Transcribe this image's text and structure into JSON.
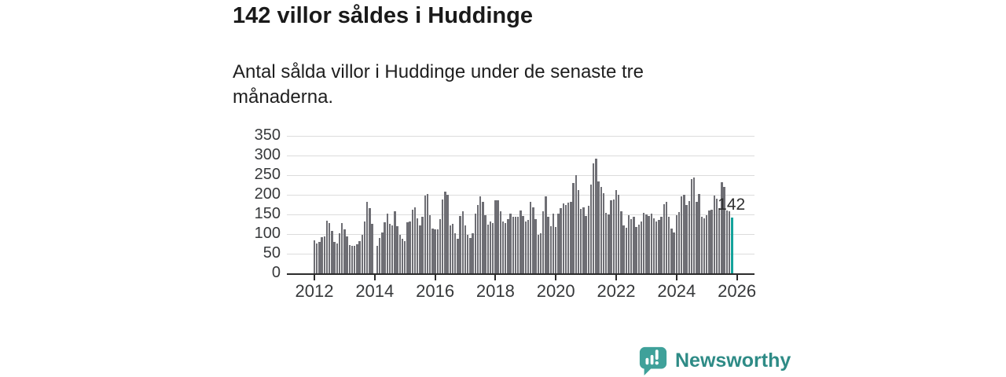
{
  "header": {
    "title": "142 villor såldes i Huddinge",
    "subtitle": "Antal sålda villor i Huddinge under de senaste tre månaderna."
  },
  "chart_data": {
    "type": "bar",
    "title": "Antal sålda villor i Huddinge under de senaste tre månaderna",
    "x_start": "2012-01",
    "frequency": "monthly (rolling 3-month totals)",
    "x_tick_labels": [
      "2012",
      "2014",
      "2016",
      "2018",
      "2020",
      "2022",
      "2024",
      "2026"
    ],
    "y_ticks": [
      0,
      50,
      100,
      150,
      200,
      250,
      300,
      350
    ],
    "ylim": [
      0,
      350
    ],
    "grid": "horizontal",
    "legend": "none",
    "bar_color": "#6e6e74",
    "values": [
      85,
      76,
      80,
      92,
      94,
      134,
      128,
      108,
      81,
      76,
      102,
      128,
      112,
      95,
      73,
      71,
      70,
      74,
      82,
      98,
      132,
      183,
      167,
      126,
      null,
      71,
      91,
      104,
      130,
      152,
      126,
      122,
      159,
      120,
      98,
      88,
      83,
      130,
      132,
      162,
      169,
      140,
      122,
      144,
      199,
      202,
      149,
      115,
      112,
      113,
      138,
      189,
      209,
      200,
      122,
      126,
      103,
      88,
      147,
      159,
      122,
      98,
      91,
      103,
      152,
      175,
      196,
      182,
      149,
      125,
      133,
      128,
      186,
      187,
      159,
      132,
      128,
      138,
      153,
      145,
      144,
      144,
      160,
      147,
      132,
      137,
      182,
      169,
      138,
      99,
      103,
      159,
      196,
      144,
      120,
      152,
      118,
      153,
      167,
      179,
      175,
      180,
      182,
      231,
      251,
      212,
      165,
      169,
      147,
      173,
      227,
      280,
      293,
      234,
      220,
      204,
      155,
      150,
      186,
      189,
      212,
      200,
      159,
      122,
      117,
      149,
      138,
      144,
      118,
      125,
      133,
      155,
      150,
      147,
      152,
      140,
      133,
      137,
      144,
      177,
      182,
      144,
      115,
      105,
      149,
      157,
      196,
      200,
      175,
      185,
      241,
      245,
      182,
      202,
      144,
      140,
      148,
      160,
      162,
      199,
      191,
      167,
      233,
      220,
      160,
      158,
      142
    ],
    "highlight": {
      "index": 166,
      "value": 142,
      "label": "142",
      "color": "#14a29b"
    }
  },
  "footer": {
    "brand": "Newsworthy"
  },
  "colors": {
    "accent_teal": "#14a29b",
    "bar_gray": "#6e6e74",
    "logo_mark_teal": "#3fa19a",
    "logo_text_teal": "#2e8b86",
    "axis": "#2b2b2b",
    "gridline": "#dcdcdc"
  }
}
